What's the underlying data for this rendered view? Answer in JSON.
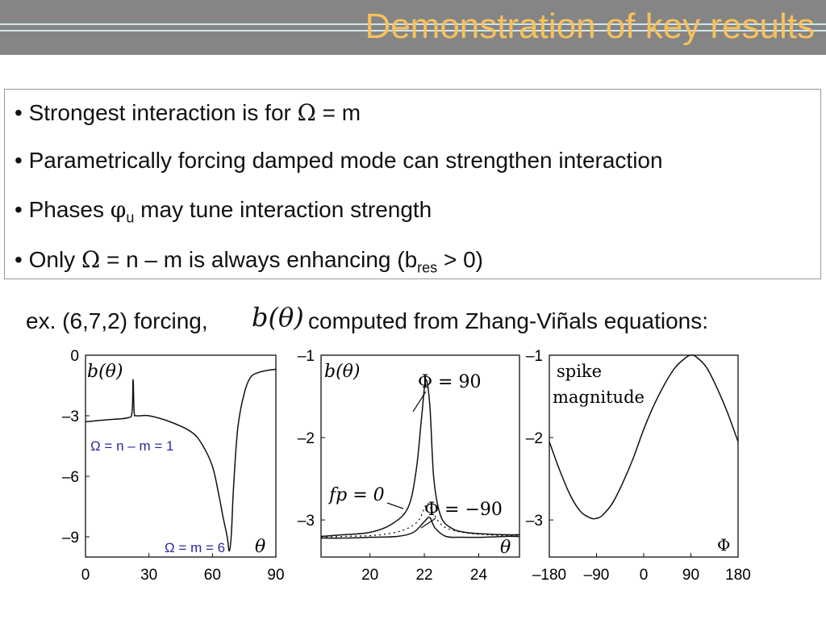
{
  "title": "Demonstration of key results",
  "bullets": [
    {
      "dot": "•",
      "pre": "Strongest interaction is for ",
      "sym": "Ω",
      "post": " = m"
    },
    {
      "dot": "•",
      "text": "Parametrically forcing damped mode can strengthen interaction"
    },
    {
      "dot": "•",
      "pre": "Phases ",
      "sym": "φ",
      "sub": "u",
      "post": " may tune interaction strength"
    },
    {
      "dot": "•",
      "pre": "Only ",
      "sym": "Ω",
      "mid": " = n – m is always enhancing (b",
      "sub": "res",
      "post": " > 0)"
    }
  ],
  "example": {
    "pre": "ex. (6,7,2) forcing,",
    "math": "b(θ)",
    "post": "computed from Zhang-Viñals equations:"
  },
  "chart_data": [
    {
      "type": "line",
      "ylim": [
        -10,
        0
      ],
      "xlim": [
        0,
        90
      ],
      "xticks": [
        "0",
        "30",
        "60",
        "90"
      ],
      "yticks": [
        "0",
        "–3",
        "–6",
        "–9"
      ],
      "annotations": {
        "ylabel": "b(θ)",
        "xlabel": "θ",
        "note1": "Ω = n – m = 1",
        "note2": "Ω = m = 6"
      },
      "series": [
        {
          "x": [
            0,
            10,
            20,
            22,
            22.5,
            23,
            24,
            30,
            40,
            50,
            55,
            60,
            63,
            65,
            67,
            68,
            69,
            70,
            72,
            75,
            78,
            82,
            86,
            90
          ],
          "y": [
            -3.3,
            -3.2,
            -3.1,
            -2.8,
            -1.2,
            -2.8,
            -3.0,
            -3.0,
            -3.3,
            -3.8,
            -4.4,
            -5.5,
            -6.9,
            -8.0,
            -9.0,
            -9.7,
            -8.8,
            -6.5,
            -3.6,
            -1.9,
            -1.1,
            -0.85,
            -0.75,
            -0.7
          ]
        }
      ]
    },
    {
      "type": "line",
      "ylim": [
        -3.45,
        -1
      ],
      "xlim": [
        18.2,
        25.5
      ],
      "xticks": [
        "20",
        "22",
        "24"
      ],
      "yticks": [
        "–1",
        "–2",
        "–3"
      ],
      "annotations": {
        "ylabel": "b(θ)",
        "xlabel": "θ",
        "l1": "Φ = 90",
        "l2": "fp = 0",
        "l3": "Φ = −90"
      },
      "series": [
        {
          "name": "Φ = 90",
          "x": [
            18.2,
            19,
            20,
            20.8,
            21.4,
            21.7,
            21.9,
            22.05,
            22.2,
            22.35,
            22.6,
            23,
            23.5,
            24.2,
            25,
            25.5
          ],
          "y": [
            -3.2,
            -3.18,
            -3.15,
            -3.05,
            -2.85,
            -2.4,
            -1.75,
            -1.3,
            -1.6,
            -2.5,
            -2.95,
            -3.1,
            -3.15,
            -3.17,
            -3.18,
            -3.18
          ]
        },
        {
          "name": "fp = 0",
          "x": [
            18.2,
            19,
            20,
            20.8,
            21.4,
            21.8,
            22.1,
            22.3,
            22.6,
            23,
            23.6,
            24.3,
            25,
            25.5
          ],
          "y": [
            -3.21,
            -3.2,
            -3.19,
            -3.16,
            -3.1,
            -3.0,
            -2.8,
            -2.9,
            -3.05,
            -3.12,
            -3.16,
            -3.18,
            -3.19,
            -3.19
          ]
        },
        {
          "name": "Φ = −90",
          "x": [
            18.2,
            19,
            20,
            21,
            21.6,
            22.0,
            22.2,
            22.4,
            22.8,
            23.4,
            24.2,
            25,
            25.5
          ],
          "y": [
            -3.22,
            -3.22,
            -3.21,
            -3.2,
            -3.15,
            -3.02,
            -2.97,
            -3.1,
            -3.2,
            -3.21,
            -3.21,
            -3.2,
            -3.2
          ]
        }
      ]
    },
    {
      "type": "line",
      "ylim": [
        -3.45,
        -1
      ],
      "xlim": [
        -180,
        180
      ],
      "xticks": [
        "–180",
        "–90",
        "0",
        "90",
        "180"
      ],
      "yticks": [
        "–1",
        "–2",
        "–3"
      ],
      "annotations": {
        "l1": "spike",
        "l2": "magnitude",
        "xlabel": "Φ"
      },
      "series": [
        {
          "x": [
            -180,
            -160,
            -140,
            -120,
            -100,
            -90,
            -80,
            -60,
            -40,
            -20,
            0,
            20,
            40,
            60,
            80,
            90,
            100,
            120,
            140,
            160,
            180
          ],
          "y": [
            -2.05,
            -2.4,
            -2.7,
            -2.9,
            -2.98,
            -2.98,
            -2.95,
            -2.8,
            -2.55,
            -2.25,
            -1.9,
            -1.6,
            -1.35,
            -1.15,
            -1.03,
            -1.0,
            -1.02,
            -1.15,
            -1.4,
            -1.7,
            -2.05
          ]
        }
      ]
    }
  ]
}
